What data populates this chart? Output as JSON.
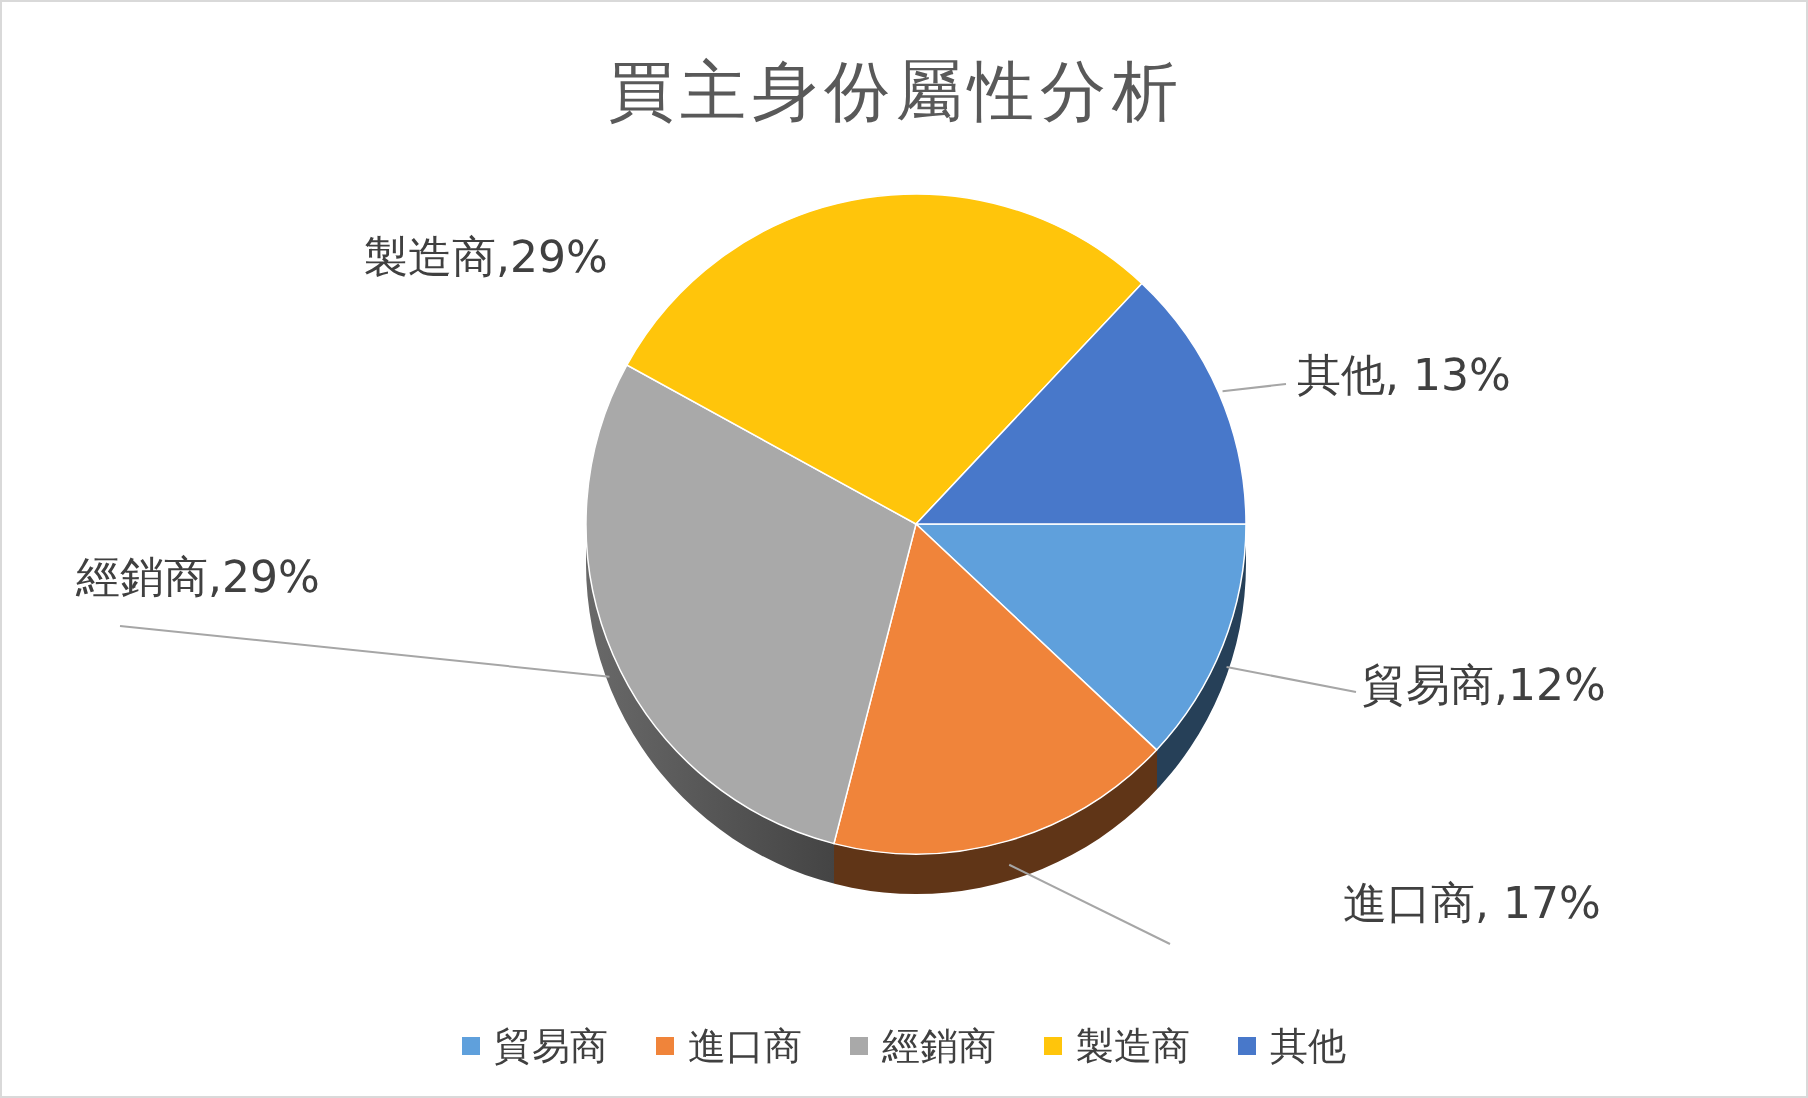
{
  "chart_data": {
    "type": "pie",
    "title": "買主身份屬性分析",
    "categories": [
      "貿易商",
      "進口商",
      "經銷商",
      "製造商",
      "其他"
    ],
    "values": [
      12,
      17,
      29,
      29,
      13
    ],
    "colors": [
      "#5fa0dc",
      "#f0843a",
      "#a9a9a9",
      "#ffc50b",
      "#4878ca"
    ],
    "value_labels": [
      "貿易商,12%",
      "進口商, 17%",
      "經銷商,29%",
      "製造商,29%",
      "其他, 13%"
    ],
    "legend": "bottom"
  }
}
